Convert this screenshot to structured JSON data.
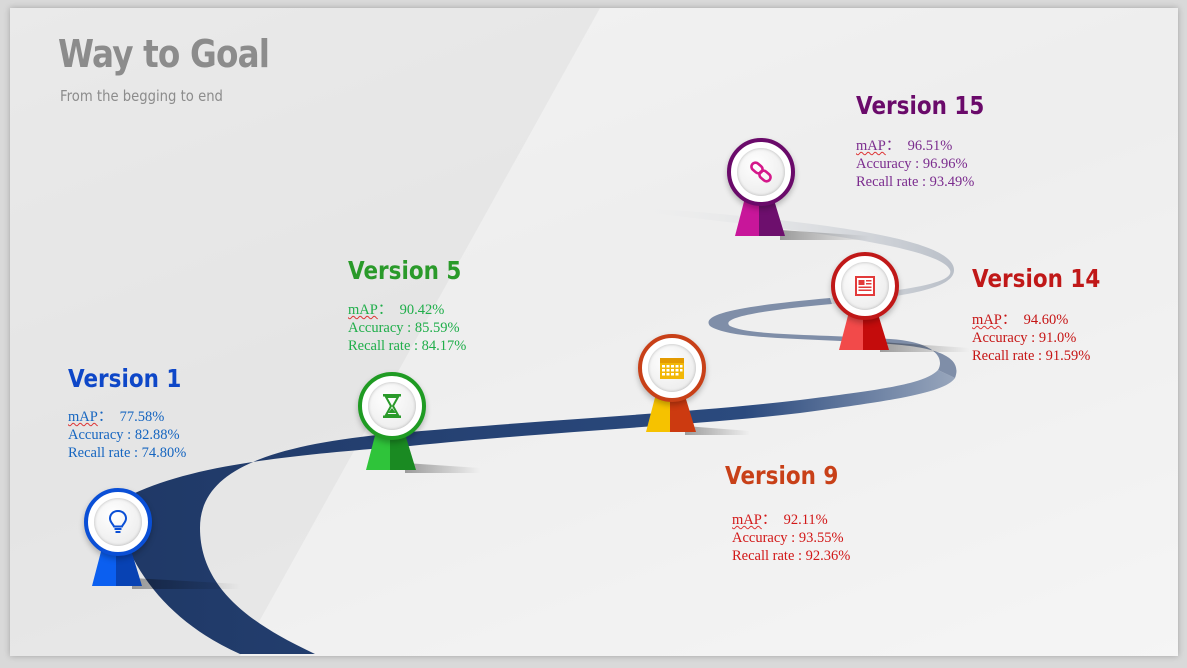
{
  "header": {
    "title": "Way to Goal",
    "subtitle": "From the begging to end"
  },
  "metric_labels": {
    "map": "mAP",
    "map_sep": "：",
    "accuracy": "Accuracy : ",
    "recall": "Recall rate : "
  },
  "colors": {
    "road": "#1f3866",
    "v1": "#0e47c8",
    "v5": "#2a9a2a",
    "v9": "#c84018",
    "v14": "#c01818",
    "v15": "#6a0a6a"
  },
  "milestones": [
    {
      "id": "v1",
      "title": "Version 1",
      "map": "77.58%",
      "accuracy": "82.88%",
      "recall": "74.80%",
      "icon": "lightbulb-icon"
    },
    {
      "id": "v5",
      "title": "Version 5",
      "map": "90.42%",
      "accuracy": "85.59%",
      "recall": "84.17%",
      "icon": "hourglass-icon"
    },
    {
      "id": "v9",
      "title": "Version 9",
      "map": "92.11%",
      "accuracy": "93.55%",
      "recall": "92.36%",
      "icon": "calendar-icon"
    },
    {
      "id": "v14",
      "title": "Version 14",
      "map": "94.60%",
      "accuracy": "91.0%",
      "recall": "91.59%",
      "icon": "document-icon"
    },
    {
      "id": "v15",
      "title": "Version 15",
      "map": "96.51%",
      "accuracy": "96.96%",
      "recall": "93.49%",
      "icon": "link-icon"
    }
  ]
}
